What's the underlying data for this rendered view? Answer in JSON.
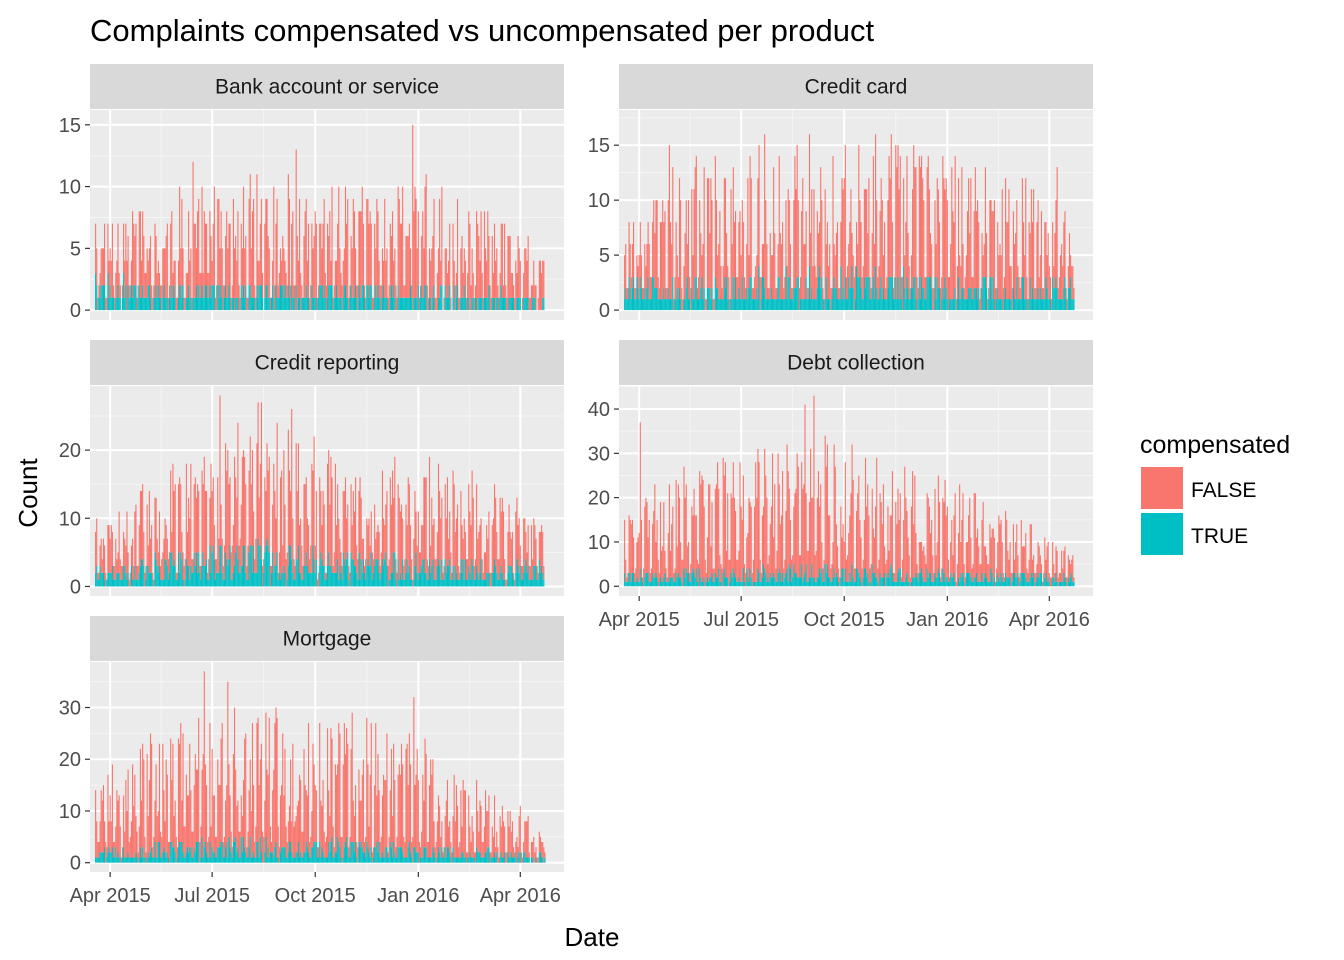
{
  "chart_data": {
    "type": "bar",
    "title": "Complaints compensated vs uncompensated per product",
    "xlabel": "Date",
    "ylabel": "Count",
    "x_range": [
      "2015-03-14",
      "2016-05-10"
    ],
    "x_ticks": [
      {
        "date": "2015-04-01",
        "label": "Apr 2015"
      },
      {
        "date": "2015-07-01",
        "label": "Jul 2015"
      },
      {
        "date": "2015-10-01",
        "label": "Oct 2015"
      },
      {
        "date": "2016-01-01",
        "label": "Jan 2016"
      },
      {
        "date": "2016-04-01",
        "label": "Apr 2016"
      }
    ],
    "data_dates": [
      "2015-03-19",
      "2016-04-23"
    ],
    "legend": {
      "title": "compensated",
      "position": "right",
      "entries": [
        {
          "label": "FALSE",
          "color": "#F8766D"
        },
        {
          "label": "TRUE",
          "color": "#00BFC4"
        }
      ]
    },
    "grid": true,
    "stacked": true,
    "facets": [
      {
        "name": "Bank account or service",
        "ylim": [
          -0.8,
          16.2
        ],
        "y_ticks": [
          0,
          5,
          10,
          15
        ],
        "false_profile": [
          [
            0,
            3
          ],
          [
            0.12,
            4
          ],
          [
            0.3,
            5
          ],
          [
            0.5,
            5
          ],
          [
            0.7,
            5
          ],
          [
            0.88,
            4
          ],
          [
            1,
            2
          ]
        ],
        "true_profile": [
          [
            0,
            1.5
          ],
          [
            0.5,
            1.2
          ],
          [
            1,
            0.8
          ]
        ],
        "peaks": [
          {
            "date": "2015-12-27",
            "count": 15
          },
          {
            "date": "2015-06-14",
            "count": 12
          },
          {
            "date": "2015-09-14",
            "count": 13
          }
        ]
      },
      {
        "name": "Credit card",
        "ylim": [
          -0.9,
          18.2
        ],
        "y_ticks": [
          0,
          5,
          10,
          15
        ],
        "false_profile": [
          [
            0,
            3
          ],
          [
            0.1,
            6
          ],
          [
            0.4,
            7
          ],
          [
            0.7,
            7
          ],
          [
            0.9,
            6
          ],
          [
            1,
            3
          ]
        ],
        "true_profile": [
          [
            0,
            1.6
          ],
          [
            0.5,
            2.2
          ],
          [
            1,
            1.6
          ]
        ],
        "peaks": [
          {
            "date": "2015-07-22",
            "count": 16
          },
          {
            "date": "2015-04-28",
            "count": 15
          },
          {
            "date": "2016-04-08",
            "count": 13
          }
        ]
      },
      {
        "name": "Credit reporting",
        "ylim": [
          -1.4,
          29.4
        ],
        "y_ticks": [
          0,
          10,
          20
        ],
        "false_profile": [
          [
            0,
            4
          ],
          [
            0.15,
            8
          ],
          [
            0.3,
            12
          ],
          [
            0.45,
            11
          ],
          [
            0.6,
            9
          ],
          [
            0.8,
            8
          ],
          [
            0.95,
            6
          ],
          [
            1,
            4
          ]
        ],
        "true_profile": [
          [
            0,
            1.5
          ],
          [
            0.3,
            4
          ],
          [
            0.6,
            3
          ],
          [
            1,
            2
          ]
        ],
        "peaks": [
          {
            "date": "2015-07-08",
            "count": 28
          },
          {
            "date": "2015-08-14",
            "count": 27
          },
          {
            "date": "2015-09-10",
            "count": 26
          }
        ]
      },
      {
        "name": "Debt collection",
        "ylim": [
          -2.2,
          45.2
        ],
        "y_ticks": [
          0,
          10,
          20,
          30,
          40
        ],
        "false_profile": [
          [
            0,
            8
          ],
          [
            0.1,
            14
          ],
          [
            0.3,
            17
          ],
          [
            0.5,
            16
          ],
          [
            0.7,
            14
          ],
          [
            0.85,
            8
          ],
          [
            1,
            4
          ]
        ],
        "true_profile": [
          [
            0,
            2
          ],
          [
            0.5,
            3
          ],
          [
            1,
            1.5
          ]
        ],
        "peaks": [
          {
            "date": "2015-08-27",
            "count": 41
          },
          {
            "date": "2015-09-04",
            "count": 43
          },
          {
            "date": "2015-04-02",
            "count": 37
          }
        ]
      },
      {
        "name": "Mortgage",
        "ylim": [
          -1.8,
          38.8
        ],
        "y_ticks": [
          0,
          10,
          20,
          30
        ],
        "false_profile": [
          [
            0,
            8
          ],
          [
            0.12,
            13
          ],
          [
            0.3,
            16
          ],
          [
            0.5,
            15
          ],
          [
            0.68,
            14
          ],
          [
            0.82,
            8
          ],
          [
            0.95,
            5
          ],
          [
            1,
            2
          ]
        ],
        "true_profile": [
          [
            0,
            1.5
          ],
          [
            0.3,
            3
          ],
          [
            0.6,
            2.5
          ],
          [
            1,
            1
          ]
        ],
        "peaks": [
          {
            "date": "2015-06-24",
            "count": 37
          },
          {
            "date": "2015-12-28",
            "count": 32
          },
          {
            "date": "2015-07-15",
            "count": 35
          }
        ]
      }
    ]
  }
}
